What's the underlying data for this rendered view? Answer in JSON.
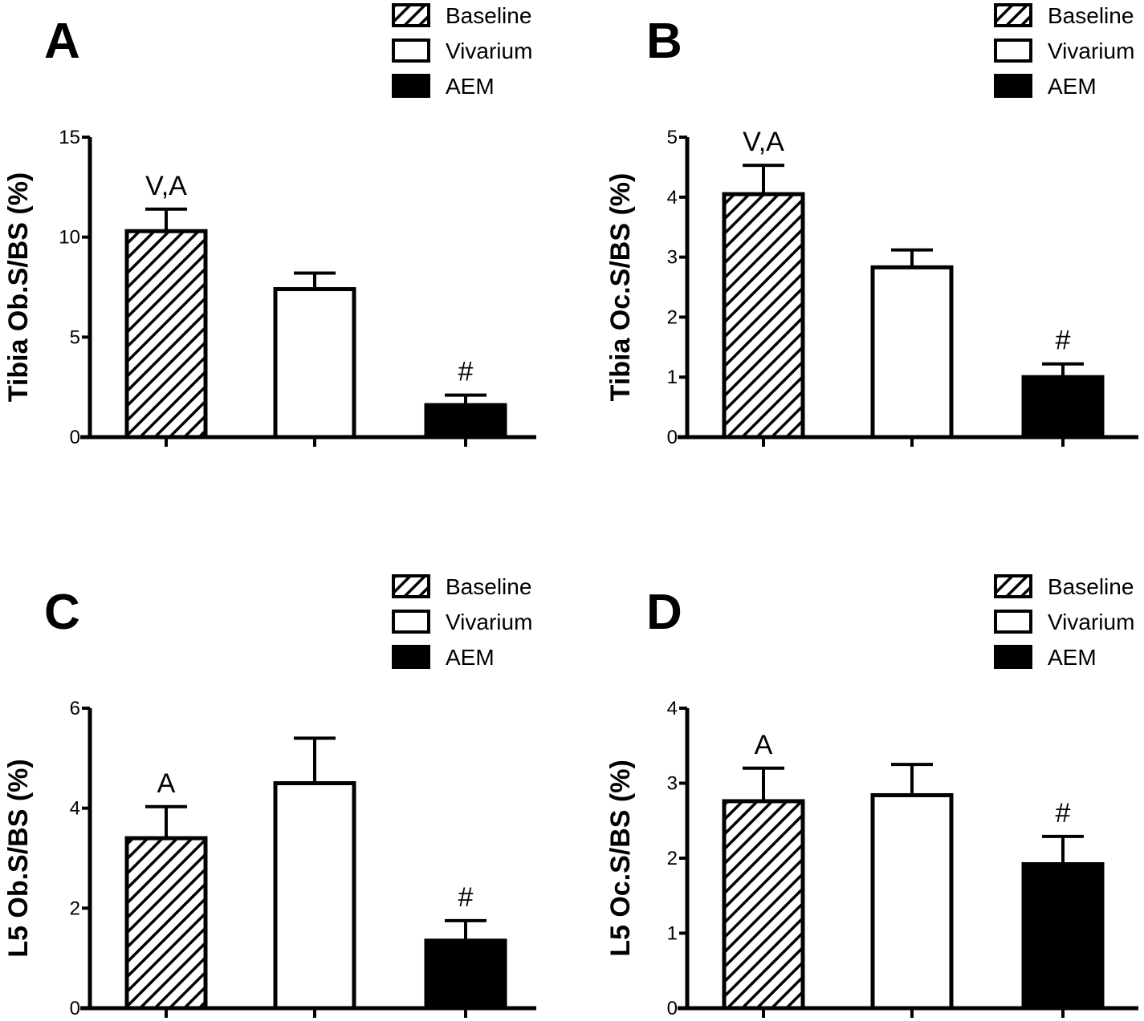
{
  "legend": [
    {
      "label": "Baseline",
      "pattern": "hatched"
    },
    {
      "label": "Vivarium",
      "pattern": "open"
    },
    {
      "label": "AEM",
      "pattern": "solid"
    }
  ],
  "colors": {
    "ink": "#000000",
    "background": "#ffffff"
  },
  "chart_data": [
    {
      "panel": "A",
      "type": "bar",
      "title": "",
      "xlabel": "",
      "ylabel": "Tibia Ob.S/BS (%)",
      "categories": [
        "Baseline",
        "Vivarium",
        "AEM"
      ],
      "values": [
        10.3,
        7.4,
        1.6
      ],
      "errors": [
        1.1,
        0.8,
        0.5
      ],
      "ylim": [
        0,
        15
      ],
      "yticks": [
        0,
        5,
        10,
        15
      ],
      "annotations": [
        "V,A",
        "",
        "#"
      ],
      "legend_position": "top-right",
      "grid": false
    },
    {
      "panel": "B",
      "type": "bar",
      "title": "",
      "xlabel": "",
      "ylabel": "Tibia Oc.S/BS (%)",
      "categories": [
        "Baseline",
        "Vivarium",
        "AEM"
      ],
      "values": [
        4.05,
        2.83,
        1.0
      ],
      "errors": [
        0.48,
        0.29,
        0.22
      ],
      "ylim": [
        0,
        5
      ],
      "yticks": [
        0,
        1,
        2,
        3,
        4,
        5
      ],
      "annotations": [
        "V,A",
        "",
        "#"
      ],
      "legend_position": "top-right",
      "grid": false
    },
    {
      "panel": "C",
      "type": "bar",
      "title": "",
      "xlabel": "",
      "ylabel": "L5 Ob.S/BS (%)",
      "categories": [
        "Baseline",
        "Vivarium",
        "AEM"
      ],
      "values": [
        3.4,
        4.5,
        1.35
      ],
      "errors": [
        0.63,
        0.9,
        0.4
      ],
      "ylim": [
        0,
        6
      ],
      "yticks": [
        0,
        2,
        4,
        6
      ],
      "annotations": [
        "A",
        "",
        "#"
      ],
      "legend_position": "top-right",
      "grid": false
    },
    {
      "panel": "D",
      "type": "bar",
      "title": "",
      "xlabel": "",
      "ylabel": "L5 Oc.S/BS (%)",
      "categories": [
        "Baseline",
        "Vivarium",
        "AEM"
      ],
      "values": [
        2.76,
        2.84,
        1.92
      ],
      "errors": [
        0.44,
        0.41,
        0.37
      ],
      "ylim": [
        0,
        4
      ],
      "yticks": [
        0,
        1,
        2,
        3,
        4
      ],
      "annotations": [
        "A",
        "",
        "#"
      ],
      "legend_position": "top-right",
      "grid": false
    }
  ]
}
